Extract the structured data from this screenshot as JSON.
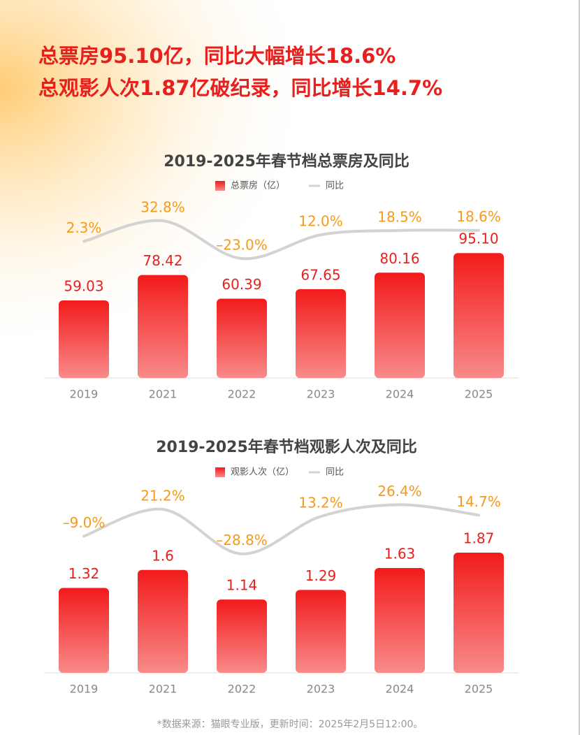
{
  "headline": [
    "总票房95.10亿，同比大幅增长18.6%",
    "总观影人次1.87亿破纪录，同比增长14.7%"
  ],
  "chart_data": [
    {
      "type": "bar",
      "title": "2019-2025年春节档总票房及同比",
      "categories": [
        "2019",
        "2021",
        "2022",
        "2023",
        "2024",
        "2025"
      ],
      "ylim": [
        0,
        100
      ],
      "y2lim": [
        -40,
        40
      ],
      "series": [
        {
          "name": "总票房（亿）",
          "color": "#f21b1b",
          "values": [
            59.03,
            78.42,
            60.39,
            67.65,
            80.16,
            95.1
          ],
          "value_labels": [
            "59.03",
            "78.42",
            "60.39",
            "67.65",
            "80.16",
            "95.10"
          ]
        },
        {
          "name": "同比",
          "type": "line",
          "axis": "y2",
          "color": "#d3d3d3",
          "values": [
            2.3,
            32.8,
            -23.0,
            12.0,
            18.5,
            18.6
          ],
          "value_labels": [
            "2.3%",
            "32.8%",
            "–23.0%",
            "12.0%",
            "18.5%",
            "18.6%"
          ]
        }
      ]
    },
    {
      "type": "bar",
      "title": "2019-2025年春节档观影人次及同比",
      "categories": [
        "2019",
        "2021",
        "2022",
        "2023",
        "2024",
        "2025"
      ],
      "ylim": [
        0,
        2
      ],
      "y2lim": [
        -40,
        40
      ],
      "series": [
        {
          "name": "观影人次（亿）",
          "color": "#f21b1b",
          "values": [
            1.32,
            1.6,
            1.14,
            1.29,
            1.63,
            1.87
          ]
        },
        {
          "name": "同比",
          "type": "line",
          "axis": "y2",
          "color": "#d3d3d3",
          "values": [
            -9.0,
            21.2,
            -28.8,
            13.2,
            26.4,
            14.7
          ],
          "value_labels": [
            "–9.0%",
            "21.2%",
            "–28.8%",
            "13.2%",
            "26.4%",
            "14.7%"
          ]
        }
      ]
    }
  ],
  "footnote": "*数据来源：猫眼专业版，更新时间：2025年2月5日12:00。"
}
